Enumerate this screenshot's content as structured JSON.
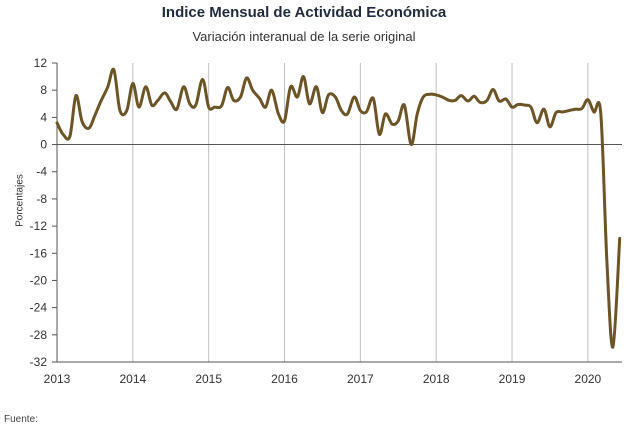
{
  "chart_data": {
    "type": "line",
    "title": "Indice Mensual de  Actividad Económica",
    "subtitle": "Variación interanual de la serie original",
    "ylabel": "Porcentajes",
    "xlabel": "",
    "source_label": "Fuente:",
    "ylim": [
      -32,
      12
    ],
    "xlim": [
      2013,
      2020.45
    ],
    "yticks": [
      "12",
      "8",
      "4",
      "0",
      "-4",
      "-8",
      "-12",
      "-16",
      "-20",
      "-24",
      "-28",
      "-32"
    ],
    "xticks": [
      "2013",
      "2014",
      "2015",
      "2016",
      "2017",
      "2018",
      "2019",
      "2020"
    ],
    "grid": "vertical",
    "legend": "none",
    "colors": {
      "line": "#6b5425",
      "grid": "#bfbfbf",
      "axis": "#555555"
    },
    "series": [
      {
        "x": [
          2013.0,
          2013.08,
          2013.17,
          2013.25,
          2013.33,
          2013.42,
          2013.5,
          2013.58,
          2013.67,
          2013.75,
          2013.83,
          2013.92,
          2014.0,
          2014.08,
          2014.17,
          2014.25,
          2014.33,
          2014.42,
          2014.5,
          2014.58,
          2014.67,
          2014.75,
          2014.83,
          2014.92,
          2015.0,
          2015.08,
          2015.17,
          2015.25,
          2015.33,
          2015.42,
          2015.5,
          2015.58,
          2015.67,
          2015.75,
          2015.83,
          2015.92,
          2016.0,
          2016.08,
          2016.17,
          2016.25,
          2016.33,
          2016.42,
          2016.5,
          2016.58,
          2016.67,
          2016.75,
          2016.83,
          2016.92,
          2017.0,
          2017.08,
          2017.17,
          2017.25,
          2017.33,
          2017.42,
          2017.5,
          2017.58,
          2017.67,
          2017.75,
          2017.83,
          2017.92,
          2018.0,
          2018.08,
          2018.17,
          2018.25,
          2018.33,
          2018.42,
          2018.5,
          2018.58,
          2018.67,
          2018.75,
          2018.83,
          2018.92,
          2019.0,
          2019.08,
          2019.17,
          2019.25,
          2019.33,
          2019.42,
          2019.5,
          2019.58,
          2019.67,
          2019.75,
          2019.83,
          2019.92,
          2020.0,
          2020.08,
          2020.17,
          2020.25,
          2020.33,
          2020.42
        ],
        "values": [
          3.2,
          1.5,
          1.2,
          7.2,
          3.4,
          2.4,
          4.3,
          6.4,
          8.5,
          11.0,
          5.0,
          5.0,
          9.0,
          5.5,
          8.5,
          5.8,
          6.5,
          7.6,
          6.3,
          5.2,
          8.5,
          6.0,
          5.8,
          9.6,
          5.5,
          5.5,
          5.7,
          8.4,
          6.5,
          7.0,
          9.8,
          8.0,
          6.8,
          5.5,
          8.0,
          4.5,
          3.5,
          8.5,
          7.0,
          10.0,
          6.0,
          8.5,
          4.7,
          7.3,
          7.0,
          5.0,
          4.5,
          7.0,
          5.0,
          4.8,
          6.8,
          1.5,
          4.5,
          3.0,
          3.5,
          5.8,
          0.0,
          4.5,
          7.0,
          7.4,
          7.3,
          7.0,
          6.5,
          6.5,
          7.2,
          6.4,
          7.1,
          6.2,
          6.5,
          8.1,
          6.4,
          6.7,
          5.5,
          5.9,
          5.8,
          5.5,
          3.2,
          5.2,
          2.6,
          4.7,
          4.8,
          5.0,
          5.2,
          5.3,
          6.6,
          4.8,
          4.6,
          -17.0,
          -29.8,
          -13.8
        ]
      }
    ]
  }
}
